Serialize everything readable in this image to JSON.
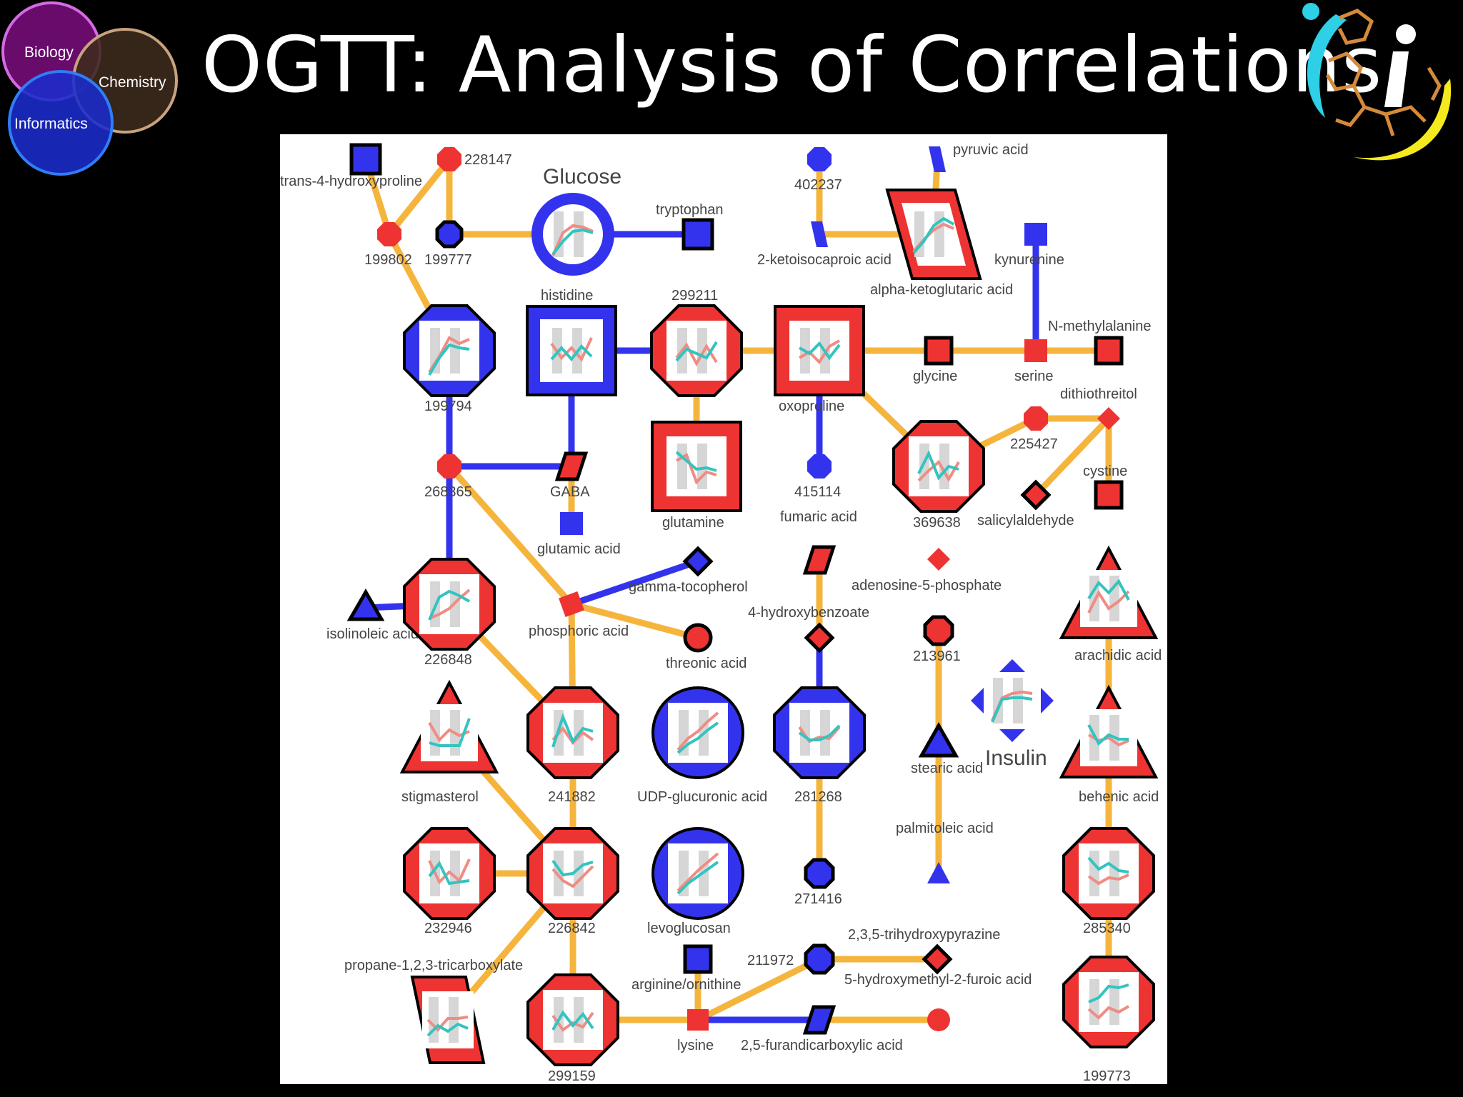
{
  "slide": {
    "title": "OGTT: Analysis of Correlations",
    "venn": {
      "biology": "Biology",
      "chemistry": "Chemistry",
      "informatics": "Informatics"
    }
  },
  "colors": {
    "increased": "#ee3333",
    "decreased": "#3333ee",
    "edge_positive": "#f5b53d",
    "edge_negative": "#3333ee",
    "pink_line": "#f08c84",
    "teal_line": "#33c4c0"
  },
  "legend": {
    "glucose": "Glucose",
    "insulin": "Insulin"
  },
  "network": {
    "nodes": [
      {
        "id": "trans-4-hydroxyproline",
        "label": "trans-4-hydroxyproline",
        "shape": "square",
        "color": "blue"
      },
      {
        "id": "228147",
        "label": "228147",
        "shape": "octagon",
        "color": "red"
      },
      {
        "id": "199802",
        "label": "199802",
        "shape": "octagon",
        "color": "red"
      },
      {
        "id": "199777",
        "label": "199777",
        "shape": "octagon",
        "color": "blue"
      },
      {
        "id": "glucose",
        "label": "Glucose",
        "shape": "circle",
        "color": "blue",
        "plot": true
      },
      {
        "id": "tryptophan",
        "label": "tryptophan",
        "shape": "square",
        "color": "blue"
      },
      {
        "id": "402237",
        "label": "402237",
        "shape": "octagon",
        "color": "blue"
      },
      {
        "id": "2-ketoisocaproic",
        "label": "2-ketoisocaproic acid",
        "shape": "parallelogram",
        "color": "blue"
      },
      {
        "id": "pyruvic",
        "label": "pyruvic acid",
        "shape": "parallelogram",
        "color": "blue"
      },
      {
        "id": "alpha-ketoglutaric",
        "label": "alpha-ketoglutaric acid",
        "shape": "parallelogram",
        "color": "red",
        "plot": true
      },
      {
        "id": "kynurenine",
        "label": "kynurenine",
        "shape": "square",
        "color": "blue"
      },
      {
        "id": "n-methylalanine",
        "label": "N-methylalanine",
        "shape": "square",
        "color": "red"
      },
      {
        "id": "199794",
        "label": "199794",
        "shape": "octagon",
        "color": "blue",
        "plot": true
      },
      {
        "id": "histidine",
        "label": "histidine",
        "shape": "square",
        "color": "blue",
        "plot": true
      },
      {
        "id": "299211",
        "label": "299211",
        "shape": "octagon",
        "color": "red",
        "plot": true
      },
      {
        "id": "oxoproline",
        "label": "oxoproline",
        "shape": "square",
        "color": "red",
        "plot": true
      },
      {
        "id": "glycine",
        "label": "glycine",
        "shape": "square",
        "color": "red"
      },
      {
        "id": "serine",
        "label": "serine",
        "shape": "square",
        "color": "red"
      },
      {
        "id": "dithiothreitol",
        "label": "dithiothreitol",
        "shape": "diamond",
        "color": "red"
      },
      {
        "id": "268365",
        "label": "268365",
        "shape": "octagon",
        "color": "red"
      },
      {
        "id": "gaba",
        "label": "GABA",
        "shape": "parallelogram",
        "color": "red"
      },
      {
        "id": "glutamine",
        "label": "glutamine",
        "shape": "square",
        "color": "red",
        "plot": true
      },
      {
        "id": "415114",
        "label": "415114",
        "shape": "octagon",
        "color": "blue"
      },
      {
        "id": "369638",
        "label": "369638",
        "shape": "octagon",
        "color": "red",
        "plot": true
      },
      {
        "id": "225427",
        "label": "225427",
        "shape": "octagon",
        "color": "red"
      },
      {
        "id": "cystine",
        "label": "cystine",
        "shape": "square",
        "color": "red"
      },
      {
        "id": "salicylaldehyde",
        "label": "salicylaldehyde",
        "shape": "diamond",
        "color": "red"
      },
      {
        "id": "glutamic",
        "label": "glutamic acid",
        "shape": "square",
        "color": "blue"
      },
      {
        "id": "fumaric",
        "label": "fumaric acid",
        "shape": "parallelogram",
        "color": "red"
      },
      {
        "id": "adenosine-5-phosphate",
        "label": "adenosine-5-phosphate",
        "shape": "diamond",
        "color": "red"
      },
      {
        "id": "gamma-tocopherol",
        "label": "gamma-tocopherol",
        "shape": "diamond",
        "color": "blue"
      },
      {
        "id": "isolinoleic",
        "label": "isolinoleic acid",
        "shape": "triangle",
        "color": "blue"
      },
      {
        "id": "226848",
        "label": "226848",
        "shape": "octagon",
        "color": "red",
        "plot": true
      },
      {
        "id": "phosphoric",
        "label": "phosphoric acid",
        "shape": "square",
        "color": "red"
      },
      {
        "id": "threonic",
        "label": "threonic acid",
        "shape": "circle",
        "color": "red"
      },
      {
        "id": "4-hydroxybenzoate",
        "label": "4-hydroxybenzoate",
        "shape": "diamond",
        "color": "red"
      },
      {
        "id": "213961",
        "label": "213961",
        "shape": "octagon",
        "color": "red"
      },
      {
        "id": "arachidic",
        "label": "arachidic acid",
        "shape": "triangle",
        "color": "red",
        "plot": true
      },
      {
        "id": "insulin",
        "label": "Insulin",
        "shape": "diamond",
        "color": "blue",
        "plot": true
      },
      {
        "id": "stigmasterol",
        "label": "stigmasterol",
        "shape": "triangle",
        "color": "red",
        "plot": true
      },
      {
        "id": "241882",
        "label": "241882",
        "shape": "octagon",
        "color": "red",
        "plot": true
      },
      {
        "id": "udp-glucuronic",
        "label": "UDP-glucuronic acid",
        "shape": "circle",
        "color": "blue",
        "plot": true
      },
      {
        "id": "281268",
        "label": "281268",
        "shape": "octagon",
        "color": "blue",
        "plot": true
      },
      {
        "id": "stearic",
        "label": "stearic acid",
        "shape": "triangle",
        "color": "blue"
      },
      {
        "id": "behenic",
        "label": "behenic acid",
        "shape": "triangle",
        "color": "red",
        "plot": true
      },
      {
        "id": "palmitoleic",
        "label": "palmitoleic acid",
        "shape": "triangle",
        "color": "blue"
      },
      {
        "id": "232946",
        "label": "232946",
        "shape": "octagon",
        "color": "red",
        "plot": true
      },
      {
        "id": "226842",
        "label": "226842",
        "shape": "octagon",
        "color": "red",
        "plot": true
      },
      {
        "id": "levoglucosan",
        "label": "levoglucosan",
        "shape": "circle",
        "color": "blue",
        "plot": true
      },
      {
        "id": "271416",
        "label": "271416",
        "shape": "octagon",
        "color": "blue"
      },
      {
        "id": "285340",
        "label": "285340",
        "shape": "octagon",
        "color": "red",
        "plot": true
      },
      {
        "id": "arginine-ornithine",
        "label": "arginine/ornithine",
        "shape": "square",
        "color": "blue"
      },
      {
        "id": "211972",
        "label": "211972",
        "shape": "octagon",
        "color": "blue"
      },
      {
        "id": "trihydroxypyrazine",
        "label": "2,3,5-trihydroxypyrazine",
        "shape": "diamond",
        "color": "red"
      },
      {
        "id": "propane-tricarboxylate",
        "label": "propane-1,2,3-tricarboxylate",
        "shape": "parallelogram",
        "color": "red",
        "plot": true
      },
      {
        "id": "hydroxymethylfuroic",
        "label": "5-hydroxymethyl-2-furoic acid",
        "shape": "circle",
        "color": "red"
      },
      {
        "id": "299159",
        "label": "299159",
        "shape": "octagon",
        "color": "red",
        "plot": true
      },
      {
        "id": "lysine",
        "label": "lysine",
        "shape": "square",
        "color": "red"
      },
      {
        "id": "furandicarboxylic",
        "label": "2,5-furandicarboxylic acid",
        "shape": "parallelogram",
        "color": "blue"
      },
      {
        "id": "199773",
        "label": "199773",
        "shape": "octagon",
        "color": "red",
        "plot": true
      }
    ],
    "edges": [
      {
        "from": "trans-4-hydroxyproline",
        "to": "199802",
        "type": "positive"
      },
      {
        "from": "228147",
        "to": "199802",
        "type": "positive"
      },
      {
        "from": "228147",
        "to": "199777",
        "type": "positive"
      },
      {
        "from": "199777",
        "to": "glucose",
        "type": "positive"
      },
      {
        "from": "199802",
        "to": "199794",
        "type": "positive"
      },
      {
        "from": "glucose",
        "to": "tryptophan",
        "type": "negative"
      },
      {
        "from": "2-ketoisocaproic",
        "to": "alpha-ketoglutaric",
        "type": "positive"
      },
      {
        "from": "402237",
        "to": "2-ketoisocaproic",
        "type": "positive"
      },
      {
        "from": "pyruvic",
        "to": "alpha-ketoglutaric",
        "type": "positive"
      },
      {
        "from": "histidine",
        "to": "299211",
        "type": "negative"
      },
      {
        "from": "299211",
        "to": "oxoproline",
        "type": "positive"
      },
      {
        "from": "oxoproline",
        "to": "glycine",
        "type": "positive"
      },
      {
        "from": "glycine",
        "to": "serine",
        "type": "positive"
      },
      {
        "from": "serine",
        "to": "n-methylalanine",
        "type": "positive"
      },
      {
        "from": "kynurenine",
        "to": "serine",
        "type": "negative"
      },
      {
        "from": "199794",
        "to": "268365",
        "type": "negative"
      },
      {
        "from": "268365",
        "to": "gaba",
        "type": "negative"
      },
      {
        "from": "histidine",
        "to": "gaba",
        "type": "negative"
      },
      {
        "from": "gaba",
        "to": "glutamic",
        "type": "positive"
      },
      {
        "from": "299211",
        "to": "glutamine",
        "type": "positive"
      },
      {
        "from": "oxoproline",
        "to": "415114",
        "type": "negative"
      },
      {
        "from": "oxoproline",
        "to": "369638",
        "type": "positive"
      },
      {
        "from": "369638",
        "to": "225427",
        "type": "positive"
      },
      {
        "from": "225427",
        "to": "dithiothreitol",
        "type": "positive"
      },
      {
        "from": "dithiothreitol",
        "to": "cystine",
        "type": "positive"
      },
      {
        "from": "dithiothreitol",
        "to": "salicylaldehyde",
        "type": "positive"
      },
      {
        "from": "268365",
        "to": "226848",
        "type": "negative"
      },
      {
        "from": "268365",
        "to": "phosphoric",
        "type": "positive"
      },
      {
        "from": "phosphoric",
        "to": "gamma-tocopherol",
        "type": "negative"
      },
      {
        "from": "phosphoric",
        "to": "threonic",
        "type": "positive"
      },
      {
        "from": "isolinoleic",
        "to": "226848",
        "type": "negative"
      },
      {
        "from": "226848",
        "to": "241882",
        "type": "positive"
      },
      {
        "from": "phosphoric",
        "to": "241882",
        "type": "positive"
      },
      {
        "from": "fumaric",
        "to": "4-hydroxybenzoate",
        "type": "positive"
      },
      {
        "from": "4-hydroxybenzoate",
        "to": "281268",
        "type": "negative"
      },
      {
        "from": "281268",
        "to": "271416",
        "type": "positive"
      },
      {
        "from": "213961",
        "to": "stearic",
        "type": "positive"
      },
      {
        "from": "stearic",
        "to": "palmitoleic",
        "type": "positive"
      },
      {
        "from": "arachidic",
        "to": "behenic",
        "type": "positive"
      },
      {
        "from": "behenic",
        "to": "285340",
        "type": "positive"
      },
      {
        "from": "285340",
        "to": "199773",
        "type": "positive"
      },
      {
        "from": "stigmasterol",
        "to": "226842",
        "type": "positive"
      },
      {
        "from": "241882",
        "to": "226842",
        "type": "positive"
      },
      {
        "from": "232946",
        "to": "226842",
        "type": "positive"
      },
      {
        "from": "226842",
        "to": "propane-tricarboxylate",
        "type": "positive"
      },
      {
        "from": "226842",
        "to": "299159",
        "type": "positive"
      },
      {
        "from": "299159",
        "to": "lysine",
        "type": "positive"
      },
      {
        "from": "arginine-ornithine",
        "to": "lysine",
        "type": "positive"
      },
      {
        "from": "lysine",
        "to": "211972",
        "type": "positive"
      },
      {
        "from": "211972",
        "to": "trihydroxypyrazine",
        "type": "positive"
      },
      {
        "from": "lysine",
        "to": "furandicarboxylic",
        "type": "negative"
      },
      {
        "from": "furandicarboxylic",
        "to": "hydroxymethylfuroic",
        "type": "positive"
      }
    ]
  }
}
